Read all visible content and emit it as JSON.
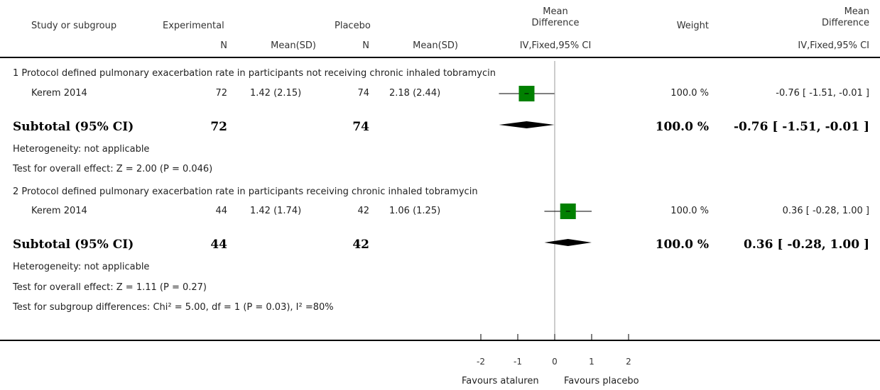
{
  "header": {
    "study": "Study or subgroup",
    "experimental": "Experimental",
    "placebo": "Placebo",
    "md_top": "Mean",
    "md_bottom": "Difference",
    "weight": "Weight",
    "md2_top": "Mean",
    "md2_bottom": "Difference",
    "n1": "N",
    "meansd1": "Mean(SD)",
    "n2": "N",
    "meansd2": "Mean(SD)",
    "method1": "IV,Fixed,95% CI",
    "method2": "IV,Fixed,95% CI"
  },
  "groups": [
    {
      "title": "1 Protocol defined pulmonary exacerbation rate in participants not receiving chronic inhaled tobramycin",
      "study": {
        "name": "Kerem 2014",
        "n1": "72",
        "m1": "1.42 (2.15)",
        "n2": "74",
        "m2": "2.18 (2.44)",
        "weight": "100.0 %",
        "ci": "-0.76 [ -1.51, -0.01 ]"
      },
      "subtotal": {
        "label": "Subtotal (95% CI)",
        "n1": "72",
        "n2": "74",
        "weight": "100.0 %",
        "ci": "-0.76 [ -1.51, -0.01 ]"
      },
      "heterogeneity": "Heterogeneity: not applicable",
      "overall": "Test for overall effect: Z = 2.00 (P = 0.046)"
    },
    {
      "title": "2 Protocol defined pulmonary exacerbation rate in participants receiving chronic inhaled tobramycin",
      "study": {
        "name": "Kerem 2014",
        "n1": "44",
        "m1": "1.42 (1.74)",
        "n2": "42",
        "m2": "1.06 (1.25)",
        "weight": "100.0 %",
        "ci": "0.36 [ -0.28, 1.00 ]"
      },
      "subtotal": {
        "label": "Subtotal (95% CI)",
        "n1": "44",
        "n2": "42",
        "weight": "100.0 %",
        "ci": "0.36 [ -0.28, 1.00 ]"
      },
      "heterogeneity": "Heterogeneity: not applicable",
      "overall": "Test for overall effect: Z = 1.11 (P = 0.27)"
    }
  ],
  "subgroup_test": "Test for subgroup differences: Chi² = 5.00, df = 1 (P = 0.03), I² =80%",
  "footer": {
    "left": "Favours ataluren",
    "right": "Favours placebo"
  },
  "colors": {
    "marker": "#008000",
    "diamond": "#000000",
    "axis": "#000000",
    "zero_line": "#999999"
  },
  "chart_data": {
    "type": "forest",
    "xlim": [
      -2,
      2
    ],
    "xticks": [
      -2,
      -1,
      0,
      1,
      2
    ],
    "xtick_labels": [
      "-2",
      "-1",
      "0",
      "1",
      "2"
    ],
    "studies": [
      {
        "group": 1,
        "name": "Kerem 2014",
        "md": -0.76,
        "lower": -1.51,
        "upper": -0.01,
        "weight": 100.0
      },
      {
        "group": 2,
        "name": "Kerem 2014",
        "md": 0.36,
        "lower": -0.28,
        "upper": 1.0,
        "weight": 100.0
      }
    ],
    "subtotals": [
      {
        "group": 1,
        "md": -0.76,
        "lower": -1.51,
        "upper": -0.01
      },
      {
        "group": 2,
        "md": 0.36,
        "lower": -0.28,
        "upper": 1.0
      }
    ]
  }
}
